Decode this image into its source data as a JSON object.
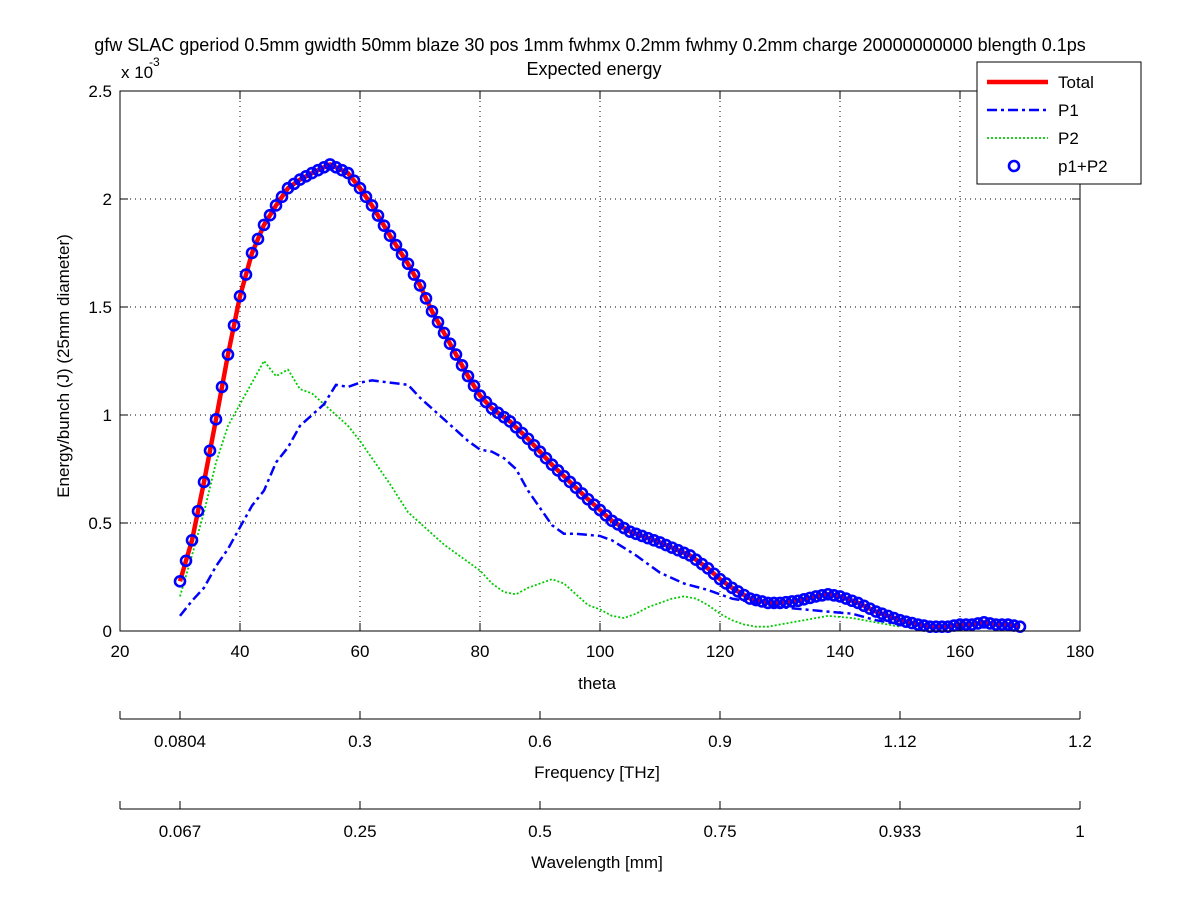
{
  "chart_data": {
    "type": "line",
    "title": "gfw SLAC gperiod 0.5mm gwidth 50mm blaze 30 pos 1mm fwhmx 0.2mm fwhmy 0.2mm charge 20000000000 blength 0.1ps",
    "subtitle": "Expected energy",
    "xlabel": "theta",
    "ylabel": "Energy/bunch (J) (25mm diameter)",
    "y_exponent_base": "x 10",
    "y_exponent_power": "-3",
    "xlim": [
      20,
      180
    ],
    "ylim": [
      0,
      2.5
    ],
    "xticks": [
      20,
      40,
      60,
      80,
      100,
      120,
      140,
      160,
      180
    ],
    "yticks": [
      0,
      0.5,
      1,
      1.5,
      2,
      2.5
    ],
    "grid": true,
    "legend_position": "top-right",
    "series": [
      {
        "name": "Total",
        "color": "#ff0000",
        "style": "solid",
        "x": [
          30,
          32,
          34,
          36,
          38,
          40,
          42,
          44,
          46,
          48,
          50,
          52,
          55,
          58,
          60,
          62,
          65,
          68,
          70,
          72,
          75,
          78,
          80,
          82,
          85,
          88,
          90,
          92,
          95,
          98,
          100,
          102,
          105,
          110,
          115,
          118,
          120,
          122,
          125,
          128,
          130,
          133,
          136,
          138,
          140,
          143,
          146,
          148,
          150,
          153,
          155,
          158,
          160,
          162,
          164,
          166,
          168,
          170
        ],
        "y": [
          0.23,
          0.42,
          0.69,
          0.98,
          1.28,
          1.55,
          1.75,
          1.88,
          1.97,
          2.05,
          2.09,
          2.12,
          2.16,
          2.12,
          2.05,
          1.97,
          1.83,
          1.7,
          1.6,
          1.48,
          1.33,
          1.18,
          1.09,
          1.03,
          0.97,
          0.89,
          0.83,
          0.77,
          0.69,
          0.61,
          0.56,
          0.51,
          0.46,
          0.41,
          0.35,
          0.29,
          0.24,
          0.2,
          0.15,
          0.13,
          0.13,
          0.14,
          0.16,
          0.17,
          0.16,
          0.13,
          0.09,
          0.07,
          0.05,
          0.03,
          0.02,
          0.02,
          0.03,
          0.03,
          0.04,
          0.03,
          0.03,
          0.02
        ]
      },
      {
        "name": "P1",
        "color": "#0000ff",
        "style": "dashdot",
        "x": [
          30,
          32,
          34,
          36,
          38,
          40,
          42,
          44,
          46,
          48,
          50,
          52,
          54,
          56,
          58,
          60,
          62,
          65,
          68,
          70,
          74,
          78,
          80,
          82,
          84,
          86,
          88,
          90,
          92,
          94,
          96,
          100,
          102,
          106,
          110,
          114,
          118,
          122,
          126,
          130,
          134,
          138,
          142,
          146,
          150
        ],
        "y": [
          0.07,
          0.14,
          0.2,
          0.3,
          0.38,
          0.48,
          0.58,
          0.65,
          0.78,
          0.85,
          0.95,
          1.0,
          1.05,
          1.14,
          1.13,
          1.15,
          1.16,
          1.15,
          1.14,
          1.08,
          0.98,
          0.88,
          0.84,
          0.83,
          0.8,
          0.75,
          0.65,
          0.57,
          0.49,
          0.45,
          0.45,
          0.44,
          0.42,
          0.35,
          0.27,
          0.22,
          0.19,
          0.15,
          0.13,
          0.11,
          0.1,
          0.09,
          0.08,
          0.05,
          0.03
        ]
      },
      {
        "name": "P2",
        "color": "#00cc00",
        "style": "dotted",
        "x": [
          30,
          32,
          34,
          36,
          38,
          40,
          42,
          44,
          46,
          48,
          50,
          52,
          54,
          56,
          58,
          60,
          62,
          65,
          68,
          70,
          74,
          78,
          80,
          82,
          84,
          86,
          88,
          90,
          92,
          94,
          96,
          98,
          100,
          102,
          104,
          106,
          108,
          110,
          112,
          114,
          116,
          118,
          120,
          122,
          124,
          126,
          128,
          130,
          134,
          138,
          142,
          146,
          150
        ],
        "y": [
          0.16,
          0.35,
          0.55,
          0.78,
          0.95,
          1.05,
          1.15,
          1.25,
          1.18,
          1.21,
          1.12,
          1.1,
          1.05,
          1.0,
          0.95,
          0.88,
          0.8,
          0.68,
          0.55,
          0.5,
          0.4,
          0.32,
          0.28,
          0.22,
          0.18,
          0.17,
          0.2,
          0.22,
          0.24,
          0.22,
          0.17,
          0.12,
          0.1,
          0.07,
          0.06,
          0.08,
          0.11,
          0.13,
          0.15,
          0.16,
          0.15,
          0.12,
          0.08,
          0.05,
          0.03,
          0.02,
          0.02,
          0.03,
          0.05,
          0.07,
          0.06,
          0.04,
          0.02
        ]
      },
      {
        "name": "p1+P2",
        "color": "#0000ff",
        "style": "markers-circle",
        "x": [
          30,
          32,
          34,
          36,
          38,
          40,
          42,
          44,
          46,
          48,
          50,
          52,
          55,
          58,
          60,
          62,
          65,
          68,
          70,
          72,
          75,
          78,
          80,
          82,
          85,
          88,
          90,
          92,
          95,
          98,
          100,
          102,
          105,
          110,
          115,
          118,
          120,
          122,
          125,
          128,
          130,
          133,
          136,
          138,
          140,
          143,
          146,
          148,
          150,
          153,
          155,
          158,
          160,
          162,
          164,
          166,
          168,
          170
        ],
        "y": [
          0.23,
          0.42,
          0.69,
          0.98,
          1.28,
          1.55,
          1.75,
          1.88,
          1.97,
          2.05,
          2.09,
          2.12,
          2.16,
          2.12,
          2.05,
          1.97,
          1.83,
          1.7,
          1.6,
          1.48,
          1.33,
          1.18,
          1.09,
          1.03,
          0.97,
          0.89,
          0.83,
          0.77,
          0.69,
          0.61,
          0.56,
          0.51,
          0.46,
          0.41,
          0.35,
          0.29,
          0.24,
          0.2,
          0.15,
          0.13,
          0.13,
          0.14,
          0.16,
          0.17,
          0.16,
          0.13,
          0.09,
          0.07,
          0.05,
          0.03,
          0.02,
          0.02,
          0.03,
          0.03,
          0.04,
          0.03,
          0.03,
          0.02
        ]
      }
    ],
    "secondary_axes": [
      {
        "label": "Frequency [THz]",
        "ticks": [
          {
            "theta": 30,
            "label": "0.0804"
          },
          {
            "theta": 60,
            "label": "0.3"
          },
          {
            "theta": 90,
            "label": "0.6"
          },
          {
            "theta": 120,
            "label": "0.9"
          },
          {
            "theta": 150,
            "label": "1.12"
          },
          {
            "theta": 180,
            "label": "1.2"
          }
        ]
      },
      {
        "label": "Wavelength [mm]",
        "ticks": [
          {
            "theta": 30,
            "label": "0.067"
          },
          {
            "theta": 60,
            "label": "0.25"
          },
          {
            "theta": 90,
            "label": "0.5"
          },
          {
            "theta": 120,
            "label": "0.75"
          },
          {
            "theta": 150,
            "label": "0.933"
          },
          {
            "theta": 180,
            "label": "1"
          }
        ]
      }
    ]
  }
}
